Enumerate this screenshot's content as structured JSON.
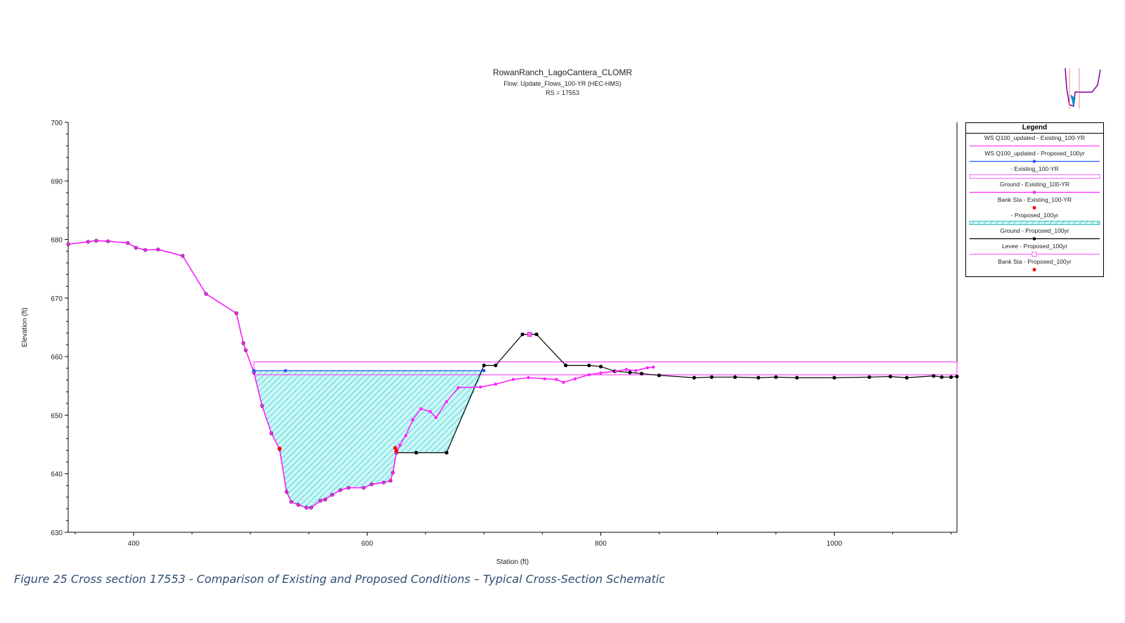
{
  "chart_data": {
    "type": "line",
    "title": "RowanRanch_LagoCantera_CLOMR",
    "subtitle_lines": [
      "Flow: Update_Flows_100-YR (HEC-HMS)",
      "RS = 17553"
    ],
    "xlabel": "Station (ft)",
    "ylabel": "Elevation (ft)",
    "xlim": [
      344,
      1105
    ],
    "ylim": [
      630,
      700
    ],
    "x_ticks": [
      "400",
      "600",
      "800",
      "1000"
    ],
    "y_ticks": [
      "630",
      "640",
      "650",
      "660",
      "670",
      "680",
      "690",
      "700"
    ],
    "legend_title": "Legend",
    "legend_position": "right",
    "legend": [
      {
        "label": "WS Q100_updated - Existing_100-YR",
        "color": "#ff44ff",
        "style": "line"
      },
      {
        "label": "WS Q100_updated - Proposed_100yr",
        "color": "#2255ff",
        "style": "line-marker"
      },
      {
        "label": "- Existing_100-YR",
        "color": "#ff66ff",
        "style": "box"
      },
      {
        "label": "Ground - Existing_100-YR",
        "color": "#ff22ff",
        "style": "line-marker"
      },
      {
        "label": "Bank Sta - Existing_100-YR",
        "color": "#ff0000",
        "style": "marker"
      },
      {
        "label": "- Proposed_100yr",
        "color": "#22aaaa",
        "style": "hatch"
      },
      {
        "label": "Ground - Proposed_100yr",
        "color": "#000000",
        "style": "line-marker"
      },
      {
        "label": "Levee - Proposed_100yr",
        "color": "#ff66ff",
        "style": "line-square"
      },
      {
        "label": "Bank Sta - Proposed_100yr",
        "color": "#ff0000",
        "style": "marker"
      }
    ],
    "series": [
      {
        "name": "Ground - Proposed_100yr",
        "color": "#000000",
        "points": [
          [
            344,
            679.2
          ],
          [
            361,
            679.6
          ],
          [
            368,
            679.8
          ],
          [
            378,
            679.7
          ],
          [
            395,
            679.4
          ],
          [
            402,
            678.6
          ],
          [
            410,
            678.2
          ],
          [
            421,
            678.3
          ],
          [
            442,
            677.2
          ],
          [
            462,
            670.7
          ],
          [
            488,
            667.4
          ],
          [
            494,
            662.3
          ],
          [
            496,
            661.1
          ],
          [
            503,
            657.3
          ],
          [
            510,
            651.6
          ],
          [
            518,
            646.9
          ],
          [
            525,
            644.2
          ],
          [
            531,
            636.9
          ],
          [
            535,
            635.2
          ],
          [
            541,
            634.7
          ],
          [
            548,
            634.2
          ],
          [
            552,
            634.2
          ],
          [
            560,
            635.4
          ],
          [
            564,
            635.6
          ],
          [
            570,
            636.4
          ],
          [
            577,
            637.2
          ],
          [
            584,
            637.6
          ],
          [
            597,
            637.6
          ],
          [
            604,
            638.2
          ],
          [
            614,
            638.5
          ],
          [
            620,
            638.8
          ],
          [
            622,
            640.2
          ],
          [
            625,
            643.6
          ],
          [
            642,
            643.6
          ],
          [
            668,
            643.6
          ],
          [
            700,
            658.5
          ],
          [
            710,
            658.5
          ],
          [
            733,
            663.8
          ],
          [
            745,
            663.8
          ],
          [
            770,
            658.5
          ],
          [
            790,
            658.5
          ],
          [
            800,
            658.3
          ],
          [
            812,
            657.5
          ],
          [
            825,
            657.3
          ],
          [
            835,
            657.1
          ],
          [
            850,
            656.8
          ],
          [
            880,
            656.4
          ],
          [
            895,
            656.5
          ],
          [
            915,
            656.5
          ],
          [
            935,
            656.4
          ],
          [
            950,
            656.5
          ],
          [
            968,
            656.4
          ],
          [
            1000,
            656.4
          ],
          [
            1030,
            656.5
          ],
          [
            1048,
            656.6
          ],
          [
            1062,
            656.4
          ],
          [
            1085,
            656.7
          ],
          [
            1092,
            656.5
          ],
          [
            1100,
            656.5
          ],
          [
            1105,
            656.6
          ]
        ]
      },
      {
        "name": "Ground - Existing_100-YR",
        "color": "#ff22ff",
        "points": [
          [
            344,
            679.2
          ],
          [
            361,
            679.6
          ],
          [
            368,
            679.8
          ],
          [
            378,
            679.7
          ],
          [
            395,
            679.4
          ],
          [
            402,
            678.6
          ],
          [
            410,
            678.2
          ],
          [
            421,
            678.3
          ],
          [
            442,
            677.2
          ],
          [
            462,
            670.7
          ],
          [
            488,
            667.4
          ],
          [
            494,
            662.3
          ],
          [
            496,
            661.1
          ],
          [
            503,
            657.3
          ],
          [
            510,
            651.6
          ],
          [
            518,
            646.9
          ],
          [
            525,
            644.2
          ],
          [
            531,
            636.9
          ],
          [
            535,
            635.2
          ],
          [
            541,
            634.7
          ],
          [
            548,
            634.2
          ],
          [
            552,
            634.2
          ],
          [
            560,
            635.4
          ],
          [
            564,
            635.6
          ],
          [
            570,
            636.4
          ],
          [
            577,
            637.2
          ],
          [
            584,
            637.6
          ],
          [
            597,
            637.6
          ],
          [
            604,
            638.2
          ],
          [
            614,
            638.5
          ],
          [
            620,
            638.8
          ],
          [
            622,
            640.2
          ],
          [
            625,
            643.6
          ],
          [
            628,
            644.9
          ],
          [
            633,
            646.5
          ],
          [
            639,
            649.2
          ],
          [
            646,
            651.1
          ],
          [
            654,
            650.6
          ],
          [
            659,
            649.6
          ],
          [
            668,
            652.3
          ],
          [
            678,
            654.7
          ],
          [
            697,
            654.8
          ],
          [
            710,
            655.3
          ],
          [
            725,
            656.1
          ],
          [
            738,
            656.4
          ],
          [
            752,
            656.2
          ],
          [
            762,
            656.1
          ],
          [
            768,
            655.6
          ],
          [
            778,
            656.2
          ],
          [
            790,
            656.9
          ],
          [
            800,
            657.2
          ],
          [
            813,
            657.5
          ],
          [
            822,
            657.8
          ],
          [
            830,
            657.6
          ],
          [
            840,
            658.1
          ],
          [
            845,
            658.2
          ]
        ]
      },
      {
        "name": "WS Q100_updated - Proposed_100yr",
        "color": "#2255ff",
        "points": [
          [
            503,
            657.6
          ],
          [
            700,
            657.6
          ]
        ]
      },
      {
        "name": "WS Q100_updated - Existing_100-YR",
        "color": "#ff44ff",
        "points": [
          [
            503,
            659.1
          ],
          [
            1105,
            659.1
          ]
        ]
      }
    ],
    "bank_stations": [
      [
        525,
        644.3
      ],
      [
        624,
        644.4
      ],
      [
        625,
        643.9
      ]
    ],
    "levee_points": [
      [
        739,
        663.8
      ]
    ]
  },
  "thumbnail": {
    "description_colors": [
      "#8000a0",
      "#0070c0",
      "#ff0000"
    ]
  },
  "caption": "Figure 25 Cross section 17553 - Comparison of Existing and Proposed Conditions – Typical Cross-Section Schematic"
}
